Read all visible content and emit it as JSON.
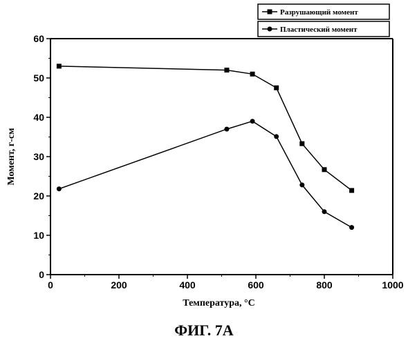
{
  "figure_caption": "ФИГ. 7А",
  "chart_data": {
    "type": "line",
    "xlabel": "Температура, °С",
    "ylabel": "Момент, г-см",
    "xlim": [
      0,
      1000
    ],
    "ylim": [
      0,
      60
    ],
    "xticks": [
      0,
      200,
      400,
      600,
      800,
      1000
    ],
    "yticks": [
      0,
      10,
      20,
      30,
      40,
      50,
      60
    ],
    "grid": false,
    "legend_position": "top-right",
    "series": [
      {
        "name": "Разрушающий момент",
        "marker": "square",
        "x": [
          25,
          515,
          590,
          660,
          735,
          800,
          880
        ],
        "y": [
          53,
          52,
          51,
          47.5,
          33.3,
          26.7,
          21.4
        ]
      },
      {
        "name": "Пластический момент",
        "marker": "circle",
        "x": [
          25,
          515,
          590,
          660,
          735,
          800,
          880
        ],
        "y": [
          21.8,
          37,
          39,
          35.1,
          22.8,
          16,
          12
        ]
      }
    ]
  }
}
